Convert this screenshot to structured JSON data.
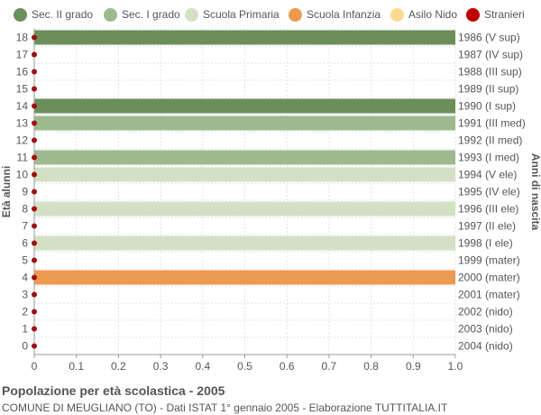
{
  "chart_data": {
    "type": "bar",
    "orientation": "horizontal",
    "title": "Popolazione per età scolastica - 2005",
    "subtitle": "COMUNE DI MEUGLIANO (TO) - Dati ISTAT 1° gennaio 2005 - Elaborazione TUTTITALIA.IT",
    "ylabel_left": "Età alunni",
    "ylabel_right": "Anni di nascita",
    "xlim": [
      0,
      1.0
    ],
    "x_ticks": [
      "0",
      "0.1",
      "0.2",
      "0.3",
      "0.4",
      "0.5",
      "0.6",
      "0.7",
      "0.8",
      "0.9",
      "1.0"
    ],
    "grid": true,
    "legend_position": "top",
    "legend": [
      {
        "name": "Sec. II grado",
        "color": "#6b8e5a"
      },
      {
        "name": "Sec. I grado",
        "color": "#9dba8f"
      },
      {
        "name": "Scuola Primaria",
        "color": "#d4e0c4"
      },
      {
        "name": "Scuola Infanzia",
        "color": "#ec9a50"
      },
      {
        "name": "Asilo Nido",
        "color": "#fdd98f"
      },
      {
        "name": "Stranieri",
        "color": "#c00000"
      }
    ],
    "rows": [
      {
        "age": "18",
        "birth": "1986 (V sup)",
        "value": 1,
        "category": "Sec. II grado",
        "stranieri": 0
      },
      {
        "age": "17",
        "birth": "1987 (IV sup)",
        "value": 0,
        "category": "Sec. II grado",
        "stranieri": 0
      },
      {
        "age": "16",
        "birth": "1988 (III sup)",
        "value": 0,
        "category": "Sec. II grado",
        "stranieri": 0
      },
      {
        "age": "15",
        "birth": "1989 (II sup)",
        "value": 0,
        "category": "Sec. II grado",
        "stranieri": 0
      },
      {
        "age": "14",
        "birth": "1990 (I sup)",
        "value": 1,
        "category": "Sec. II grado",
        "stranieri": 0
      },
      {
        "age": "13",
        "birth": "1991 (III med)",
        "value": 1,
        "category": "Sec. I grado",
        "stranieri": 0
      },
      {
        "age": "12",
        "birth": "1992 (II med)",
        "value": 0,
        "category": "Sec. I grado",
        "stranieri": 0
      },
      {
        "age": "11",
        "birth": "1993 (I med)",
        "value": 1,
        "category": "Sec. I grado",
        "stranieri": 0
      },
      {
        "age": "10",
        "birth": "1994 (V ele)",
        "value": 1,
        "category": "Scuola Primaria",
        "stranieri": 0
      },
      {
        "age": "9",
        "birth": "1995 (IV ele)",
        "value": 0,
        "category": "Scuola Primaria",
        "stranieri": 0
      },
      {
        "age": "8",
        "birth": "1996 (III ele)",
        "value": 1,
        "category": "Scuola Primaria",
        "stranieri": 0
      },
      {
        "age": "7",
        "birth": "1997 (II ele)",
        "value": 0,
        "category": "Scuola Primaria",
        "stranieri": 0
      },
      {
        "age": "6",
        "birth": "1998 (I ele)",
        "value": 1,
        "category": "Scuola Primaria",
        "stranieri": 0
      },
      {
        "age": "5",
        "birth": "1999 (mater)",
        "value": 0,
        "category": "Scuola Infanzia",
        "stranieri": 0
      },
      {
        "age": "4",
        "birth": "2000 (mater)",
        "value": 1,
        "category": "Scuola Infanzia",
        "stranieri": 0
      },
      {
        "age": "3",
        "birth": "2001 (mater)",
        "value": 0,
        "category": "Scuola Infanzia",
        "stranieri": 0
      },
      {
        "age": "2",
        "birth": "2002 (nido)",
        "value": 0,
        "category": "Asilo Nido",
        "stranieri": 0
      },
      {
        "age": "1",
        "birth": "2003 (nido)",
        "value": 0,
        "category": "Asilo Nido",
        "stranieri": 0
      },
      {
        "age": "0",
        "birth": "2004 (nido)",
        "value": 0,
        "category": "Asilo Nido",
        "stranieri": 0
      }
    ]
  }
}
